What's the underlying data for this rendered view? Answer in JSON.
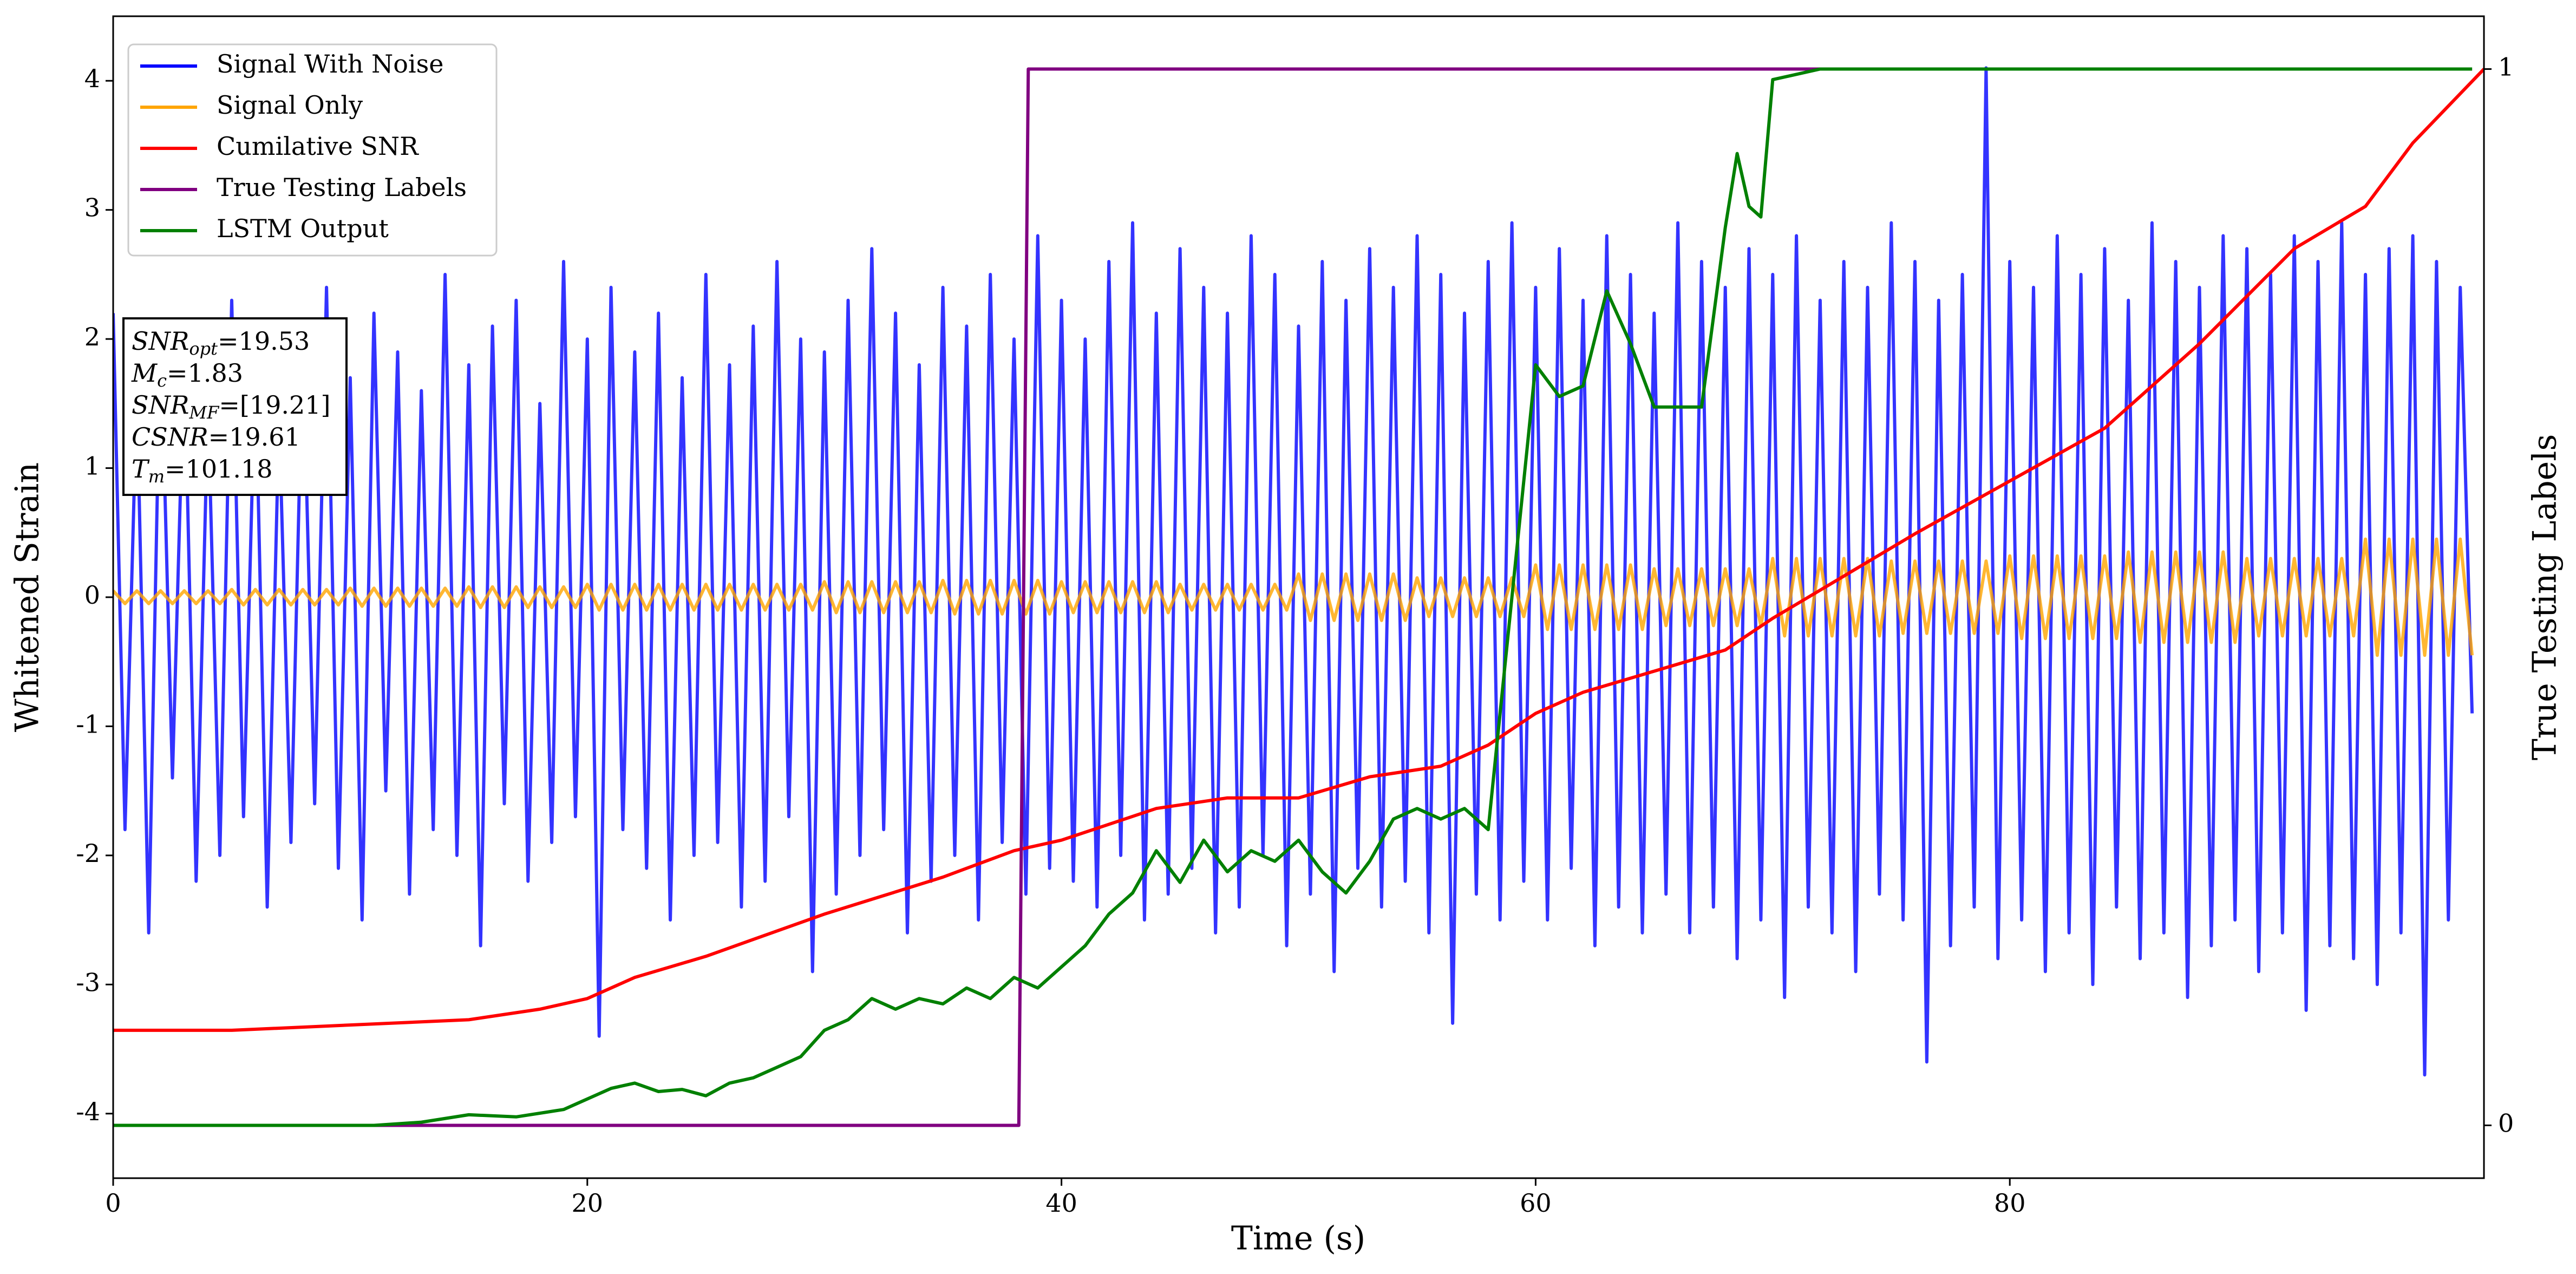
{
  "chart_data": {
    "type": "line",
    "xlabel": "Time (s)",
    "ylabel": "Whitened Strain",
    "y2label": "True Testing Labels",
    "xlim": [
      0,
      100
    ],
    "xticks": [
      0,
      20,
      40,
      60,
      80
    ],
    "ylim": [
      -4.5,
      4.5
    ],
    "yticks": [
      -4,
      -3,
      -2,
      -1,
      0,
      1,
      2,
      3,
      4
    ],
    "y2lim": [
      -0.05,
      1.05
    ],
    "y2ticks": [
      0,
      1
    ],
    "legend_loc": "upper left",
    "alpha": 0.8,
    "annotations": [
      {
        "main": "SNR",
        "sub": "opt",
        "rest": "=19.53"
      },
      {
        "main": "M",
        "sub": "c",
        "rest": "=1.83"
      },
      {
        "main": "SNR",
        "sub": "MF",
        "rest": "=[19.21]"
      },
      {
        "main": "CSNR",
        "sub": "",
        "rest": "=19.61"
      },
      {
        "main": "T",
        "sub": "m",
        "rest": "=101.18"
      }
    ],
    "x": [
      0,
      0.5,
      1,
      1.5,
      2,
      2.5,
      3,
      3.5,
      4,
      4.5,
      5,
      5.5,
      6,
      6.5,
      7,
      7.5,
      8,
      8.5,
      9,
      9.5,
      10,
      10.5,
      11,
      11.5,
      12,
      12.5,
      13,
      13.5,
      14,
      14.5,
      15,
      15.5,
      16,
      16.5,
      17,
      17.5,
      18,
      18.5,
      19,
      19.5,
      20,
      20.5,
      21,
      21.5,
      22,
      22.5,
      23,
      23.5,
      24,
      24.5,
      25,
      25.5,
      26,
      26.5,
      27,
      27.5,
      28,
      28.5,
      29,
      29.5,
      30,
      30.5,
      31,
      31.5,
      32,
      32.5,
      33,
      33.5,
      34,
      34.5,
      35,
      35.5,
      36,
      36.5,
      37,
      37.5,
      38,
      38.5,
      39,
      39.5,
      40,
      40.5,
      41,
      41.5,
      42,
      42.5,
      43,
      43.5,
      44,
      44.5,
      45,
      45.5,
      46,
      46.5,
      47,
      47.5,
      48,
      48.5,
      49,
      49.5,
      50,
      50.5,
      51,
      51.5,
      52,
      52.5,
      53,
      53.5,
      54,
      54.5,
      55,
      55.5,
      56,
      56.5,
      57,
      57.5,
      58,
      58.5,
      59,
      59.5,
      60,
      60.5,
      61,
      61.5,
      62,
      62.5,
      63,
      63.5,
      64,
      64.5,
      65,
      65.5,
      66,
      66.5,
      67,
      67.5,
      68,
      68.5,
      69,
      69.5,
      70,
      70.5,
      71,
      71.5,
      72,
      72.5,
      73,
      73.5,
      74,
      74.5,
      75,
      75.5,
      76,
      76.5,
      77,
      77.5,
      78,
      78.5,
      79,
      79.5,
      80,
      80.5,
      81,
      81.5,
      82,
      82.5,
      83,
      83.5,
      84,
      84.5,
      85,
      85.5,
      86,
      86.5,
      87,
      87.5,
      88,
      88.5,
      89,
      89.5,
      90,
      90.5,
      91,
      91.5,
      92,
      92.5,
      93,
      93.5,
      94,
      94.5,
      95,
      95.5,
      96,
      96.5,
      97,
      97.5,
      98,
      98.5,
      99,
      99.5
    ],
    "series": [
      {
        "name": "Signal With Noise",
        "color": "#0000ff",
        "axis": "y",
        "values": [
          2.2,
          -1.8,
          1.6,
          -2.6,
          2.1,
          -1.4,
          1.9,
          -2.2,
          1.5,
          -2.0,
          2.3,
          -1.7,
          1.8,
          -2.4,
          1.4,
          -1.9,
          2.0,
          -1.6,
          2.4,
          -2.1,
          1.7,
          -2.5,
          2.2,
          -1.5,
          1.9,
          -2.3,
          1.6,
          -1.8,
          2.5,
          -2.0,
          1.8,
          -2.7,
          2.1,
          -1.6,
          2.3,
          -2.2,
          1.5,
          -1.9,
          2.6,
          -1.7,
          2.0,
          -3.4,
          2.4,
          -1.8,
          1.9,
          -2.1,
          2.2,
          -2.5,
          1.7,
          -2.0,
          2.5,
          -1.9,
          1.8,
          -2.4,
          2.1,
          -2.2,
          2.6,
          -1.7,
          2.0,
          -2.9,
          1.9,
          -2.3,
          2.3,
          -2.0,
          2.7,
          -1.8,
          2.2,
          -2.6,
          1.8,
          -2.2,
          2.4,
          -2.0,
          2.1,
          -2.5,
          2.5,
          -1.9,
          2.0,
          -2.3,
          2.8,
          -2.1,
          2.3,
          -2.2,
          2.0,
          -2.4,
          2.6,
          -2.0,
          2.9,
          -2.5,
          2.2,
          -2.3,
          2.7,
          -2.1,
          2.4,
          -2.6,
          2.2,
          -2.4,
          2.8,
          -2.0,
          2.5,
          -2.7,
          2.1,
          -2.3,
          2.6,
          -2.9,
          2.3,
          -2.1,
          2.7,
          -2.4,
          2.4,
          -2.2,
          2.8,
          -2.6,
          2.5,
          -3.3,
          2.2,
          -2.3,
          2.6,
          -2.5,
          2.9,
          -2.2,
          2.4,
          -2.5,
          2.7,
          -2.1,
          2.3,
          -2.7,
          2.8,
          -2.4,
          2.5,
          -2.6,
          2.2,
          -2.3,
          2.9,
          -2.6,
          2.6,
          -2.4,
          2.4,
          -2.8,
          2.7,
          -2.5,
          2.5,
          -3.1,
          2.8,
          -2.4,
          2.3,
          -2.6,
          2.6,
          -2.9,
          2.4,
          -2.3,
          2.9,
          -2.5,
          2.6,
          -3.6,
          2.3,
          -2.7,
          2.5,
          -2.4,
          4.1,
          -2.8,
          2.6,
          -2.5,
          2.4,
          -2.9,
          2.8,
          -2.6,
          2.5,
          -3.0,
          2.7,
          -2.4,
          2.3,
          -2.8,
          2.9,
          -2.6,
          2.6,
          -3.1,
          2.4,
          -2.7,
          2.8,
          -2.5,
          2.7,
          -2.9,
          2.5,
          -2.6,
          2.8,
          -3.2,
          2.6,
          -2.7,
          2.9,
          -2.8,
          2.5,
          -3.0,
          2.7,
          -2.6,
          2.8,
          -3.7,
          2.6,
          -2.5,
          2.4,
          -0.9
        ]
      },
      {
        "name": "Signal Only",
        "color": "#ffa500",
        "axis": "y",
        "values": [
          0.05,
          -0.05,
          0.05,
          -0.05,
          0.05,
          -0.05,
          0.05,
          -0.05,
          0.05,
          -0.05,
          0.06,
          -0.06,
          0.06,
          -0.06,
          0.06,
          -0.06,
          0.06,
          -0.06,
          0.06,
          -0.06,
          0.07,
          -0.07,
          0.07,
          -0.07,
          0.07,
          -0.07,
          0.07,
          -0.07,
          0.07,
          -0.07,
          0.08,
          -0.08,
          0.08,
          -0.08,
          0.08,
          -0.08,
          0.08,
          -0.08,
          0.08,
          -0.08,
          0.1,
          -0.1,
          0.1,
          -0.1,
          0.1,
          -0.1,
          0.1,
          -0.1,
          0.1,
          -0.1,
          0.1,
          -0.1,
          0.1,
          -0.1,
          0.1,
          -0.1,
          0.1,
          -0.1,
          0.1,
          -0.1,
          0.12,
          -0.12,
          0.12,
          -0.12,
          0.12,
          -0.12,
          0.12,
          -0.12,
          0.12,
          -0.12,
          0.13,
          -0.13,
          0.13,
          -0.13,
          0.13,
          -0.13,
          0.13,
          -0.13,
          0.13,
          -0.13,
          0.12,
          -0.12,
          0.12,
          -0.12,
          0.12,
          -0.12,
          0.12,
          -0.12,
          0.12,
          -0.12,
          0.1,
          -0.1,
          0.1,
          -0.1,
          0.1,
          -0.1,
          0.1,
          -0.1,
          0.1,
          -0.1,
          0.18,
          -0.18,
          0.18,
          -0.18,
          0.18,
          -0.18,
          0.18,
          -0.18,
          0.18,
          -0.18,
          0.15,
          -0.15,
          0.15,
          -0.15,
          0.15,
          -0.15,
          0.15,
          -0.15,
          0.15,
          -0.15,
          0.25,
          -0.25,
          0.25,
          -0.25,
          0.25,
          -0.25,
          0.25,
          -0.25,
          0.25,
          -0.25,
          0.22,
          -0.22,
          0.22,
          -0.22,
          0.22,
          -0.22,
          0.22,
          -0.22,
          0.22,
          -0.22,
          0.3,
          -0.3,
          0.3,
          -0.3,
          0.3,
          -0.3,
          0.3,
          -0.3,
          0.3,
          -0.3,
          0.28,
          -0.28,
          0.28,
          -0.28,
          0.28,
          -0.28,
          0.28,
          -0.28,
          0.28,
          -0.28,
          0.32,
          -0.32,
          0.32,
          -0.32,
          0.32,
          -0.32,
          0.32,
          -0.32,
          0.32,
          -0.32,
          0.35,
          -0.35,
          0.35,
          -0.35,
          0.35,
          -0.35,
          0.35,
          -0.35,
          0.35,
          -0.35,
          0.3,
          -0.3,
          0.3,
          -0.3,
          0.3,
          -0.3,
          0.3,
          -0.3,
          0.3,
          -0.3,
          0.45,
          -0.45,
          0.45,
          -0.45,
          0.45,
          -0.45,
          0.45,
          -0.45,
          0.45,
          -0.45
        ]
      },
      {
        "name": "Cumilative SNR",
        "color": "#ff0000",
        "axis": "y2",
        "x": [
          0,
          5,
          10,
          15,
          18,
          20,
          22,
          25,
          30,
          35,
          38,
          40,
          44,
          47,
          50,
          53,
          56,
          58,
          60,
          62,
          65,
          68,
          70,
          73,
          76,
          80,
          84,
          88,
          92,
          95,
          97,
          100
        ],
        "values": [
          0.09,
          0.09,
          0.095,
          0.1,
          0.11,
          0.12,
          0.14,
          0.16,
          0.2,
          0.235,
          0.26,
          0.27,
          0.3,
          0.31,
          0.31,
          0.33,
          0.34,
          0.36,
          0.39,
          0.41,
          0.43,
          0.45,
          0.48,
          0.52,
          0.56,
          0.61,
          0.66,
          0.74,
          0.83,
          0.87,
          0.93,
          1.0
        ]
      },
      {
        "name": "True Testing Labels",
        "color": "#800080",
        "axis": "y2",
        "x": [
          0,
          38.2,
          38.6,
          99.5
        ],
        "values": [
          0,
          0,
          1,
          1
        ]
      },
      {
        "name": "LSTM Output",
        "color": "#008000",
        "axis": "y2",
        "x": [
          0,
          11,
          13,
          15,
          17,
          19,
          20,
          21,
          22,
          23,
          24,
          25,
          26,
          27,
          28,
          29,
          30,
          31,
          32,
          33,
          34,
          35,
          36,
          37,
          38,
          39,
          40,
          41,
          42,
          43,
          44,
          45,
          46,
          47,
          48,
          49,
          50,
          51,
          52,
          53,
          54,
          55,
          56,
          57,
          58,
          59,
          60,
          61,
          62,
          63,
          64,
          65,
          66,
          67,
          68,
          68.5,
          69,
          69.5,
          70,
          72,
          75,
          99.5
        ],
        "values": [
          0,
          0,
          0.003,
          0.01,
          0.008,
          0.015,
          0.025,
          0.035,
          0.04,
          0.032,
          0.034,
          0.028,
          0.04,
          0.045,
          0.055,
          0.065,
          0.09,
          0.1,
          0.12,
          0.11,
          0.12,
          0.115,
          0.13,
          0.12,
          0.14,
          0.13,
          0.15,
          0.17,
          0.2,
          0.22,
          0.26,
          0.23,
          0.27,
          0.24,
          0.26,
          0.25,
          0.27,
          0.24,
          0.22,
          0.25,
          0.29,
          0.3,
          0.29,
          0.3,
          0.28,
          0.5,
          0.72,
          0.69,
          0.7,
          0.79,
          0.74,
          0.68,
          0.68,
          0.68,
          0.85,
          0.92,
          0.87,
          0.86,
          0.99,
          1.0,
          1.0,
          1.0
        ]
      }
    ]
  }
}
